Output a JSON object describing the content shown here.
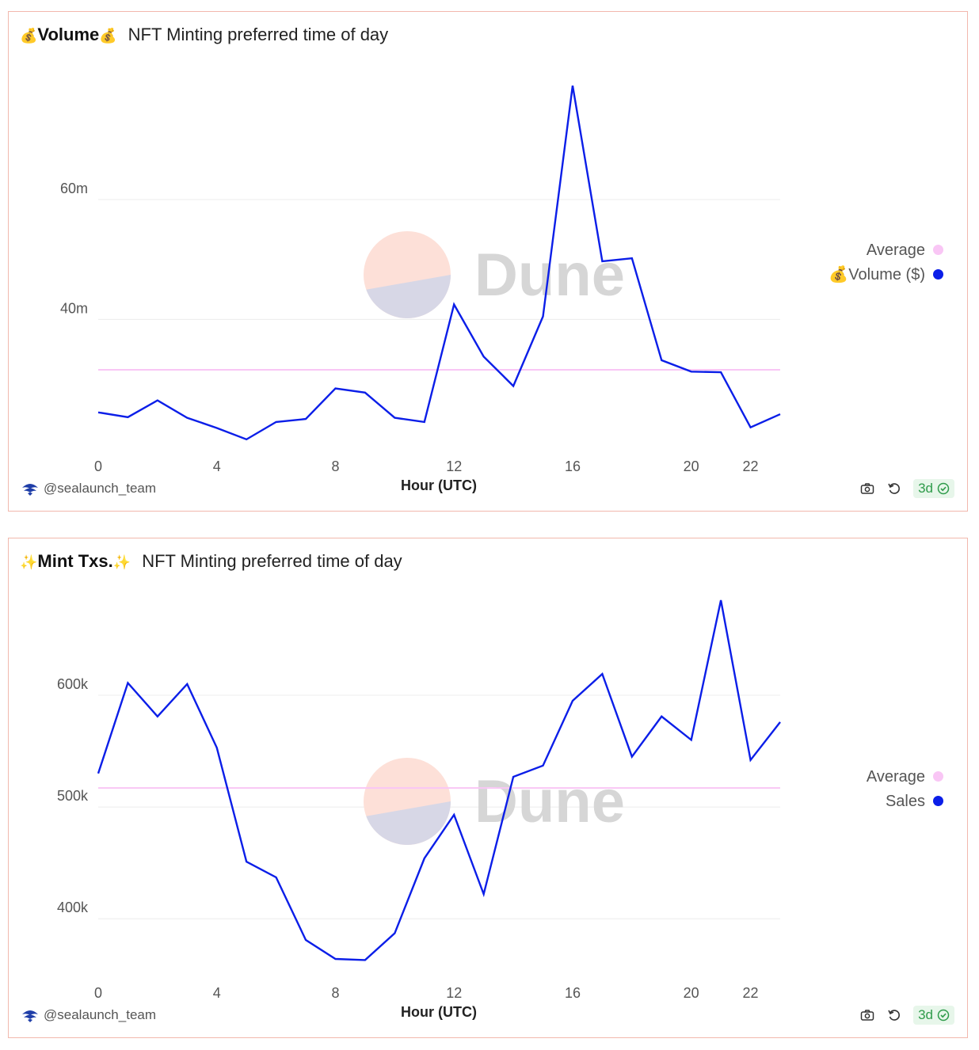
{
  "footer": {
    "author": "@sealaunch_team",
    "badge": "3d"
  },
  "panels": [
    {
      "emoji": "💰",
      "title_strong": "Volume",
      "title_desc": "NFT Minting preferred time of day",
      "legend": [
        {
          "label": "Average",
          "color": "#f9c6f5"
        },
        {
          "label": "💰Volume ($)",
          "color": "#0b1ee8"
        }
      ]
    },
    {
      "emoji": "✨",
      "title_strong": "Mint Txs.",
      "title_desc": "NFT Minting preferred time of day",
      "legend": [
        {
          "label": "Average",
          "color": "#f9c6f5"
        },
        {
          "label": "Sales",
          "color": "#0b1ee8"
        }
      ]
    }
  ],
  "chart_data": [
    {
      "type": "line",
      "title": "💰Volume💰 NFT Minting preferred time of day",
      "xlabel": "Hour (UTC)",
      "ylabel": "",
      "x": [
        0,
        1,
        2,
        3,
        4,
        5,
        6,
        7,
        8,
        9,
        10,
        11,
        12,
        13,
        14,
        15,
        16,
        17,
        18,
        19,
        20,
        21,
        22,
        23
      ],
      "x_ticks": [
        0,
        4,
        8,
        12,
        16,
        20,
        22
      ],
      "y_ticks": [
        {
          "value": 40000000,
          "label": "40m"
        },
        {
          "value": 60000000,
          "label": "60m"
        }
      ],
      "ylim": [
        18000000,
        81000000
      ],
      "grid": true,
      "legend_position": "right",
      "series": [
        {
          "name": "Average",
          "color": "#f9c6f5",
          "values": [
            31600000,
            31600000,
            31600000,
            31600000,
            31600000,
            31600000,
            31600000,
            31600000,
            31600000,
            31600000,
            31600000,
            31600000,
            31600000,
            31600000,
            31600000,
            31600000,
            31600000,
            31600000,
            31600000,
            31600000,
            31600000,
            31600000,
            31600000,
            31600000
          ]
        },
        {
          "name": "💰Volume ($)",
          "color": "#0b1ee8",
          "values": [
            24500000,
            23700000,
            26500000,
            23600000,
            21900000,
            20000000,
            22900000,
            23400000,
            28500000,
            27800000,
            23600000,
            22900000,
            42500000,
            33800000,
            28900000,
            40500000,
            79000000,
            49700000,
            50200000,
            33200000,
            31300000,
            31200000,
            22000000,
            24200000
          ]
        }
      ]
    },
    {
      "type": "line",
      "title": "✨Mint Txs.✨ NFT Minting preferred time of day",
      "xlabel": "Hour (UTC)",
      "ylabel": "",
      "x": [
        0,
        1,
        2,
        3,
        4,
        5,
        6,
        7,
        8,
        9,
        10,
        11,
        12,
        13,
        14,
        15,
        16,
        17,
        18,
        19,
        20,
        21,
        22,
        23
      ],
      "x_ticks": [
        0,
        4,
        8,
        12,
        16,
        20,
        22
      ],
      "y_ticks": [
        {
          "value": 400000,
          "label": "400k"
        },
        {
          "value": 500000,
          "label": "500k"
        },
        {
          "value": 600000,
          "label": "600k"
        }
      ],
      "ylim": [
        347000,
        685000
      ],
      "grid": true,
      "legend_position": "right",
      "series": [
        {
          "name": "Average",
          "color": "#f9c6f5",
          "values": [
            517000,
            517000,
            517000,
            517000,
            517000,
            517000,
            517000,
            517000,
            517000,
            517000,
            517000,
            517000,
            517000,
            517000,
            517000,
            517000,
            517000,
            517000,
            517000,
            517000,
            517000,
            517000,
            517000,
            517000
          ]
        },
        {
          "name": "Sales",
          "color": "#0b1ee8",
          "values": [
            530000,
            611000,
            581000,
            610000,
            553000,
            451000,
            437000,
            381000,
            364000,
            363000,
            387000,
            454000,
            493000,
            422000,
            527000,
            537000,
            595000,
            619000,
            545000,
            581000,
            560000,
            685000,
            542000,
            576000
          ]
        }
      ]
    }
  ]
}
